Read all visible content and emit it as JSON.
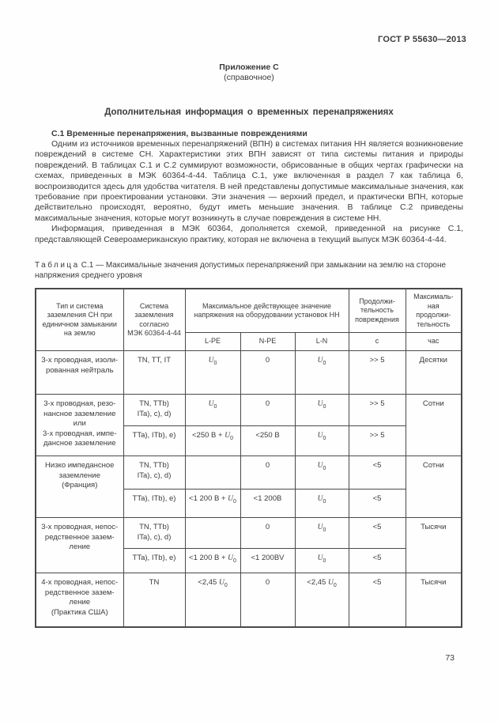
{
  "page": {
    "doc_code": "ГОСТ Р 55630—2013",
    "appendix_title": "Приложение С",
    "appendix_subtitle": "(справочное)",
    "main_title": "Дополнительная информация о временных перенапряжениях",
    "page_number": "73"
  },
  "section": {
    "heading": "С.1 Временные перенапряжения, вызванные повреждениями",
    "paragraph1": "Одним из источников временных перенапряжений (ВПН) в системах питания НН является возникновение повреждений в системе СН. Характеристики этих ВПН зависят от типа системы питания и природы повреждений. В таблицах С.1 и С.2 суммируют возможности, обрисованные в общих чертах графически на схемах, приведенных в МЭК 60364-4-44. Таблица С.1, уже включенная в раздел 7 как таблица 6, воспроизводится здесь для удобства читателя. В ней представлены допустимые максимальные значения, как требование при проектировании установки. Эти значения — верхний предел, и практически ВПН, которые действительно происходят, вероятно, будут иметь меньшие значения. В таблице С.2 приведены максимальные значения, которые могут возникнуть в случае повреждения в системе  НН.",
    "paragraph2": "Информация, приведенная в МЭК 60364, дополняется схемой, приведенной на рисунке С.1, представляющей Североамериканскую практику, которая не включена в текущий выпуск МЭК 60364-4-44."
  },
  "table": {
    "caption_word": "Таблица",
    "caption_number": "С.1",
    "caption_text": "— Максимальные значения допустимых перенапряжений при замыкании на землю на стороне напряжения среднего уровня",
    "headers": {
      "col_type": "Тип и система\nзаземления СН при\nединичном замыкании\nна землю",
      "col_system": "Система\nзаземления\nсогласно\nМЭК 60364-4-44",
      "col_voltage_group": "Максимальное действующее значение\nнапряжения на оборудовании установок НН",
      "col_duration": "Продолжи-\nтельность\nповреждения",
      "col_max_duration": "Максималь-\nная\nпродолжи-\nтельность",
      "sub_lpe": "L-PE",
      "sub_npe": "N-PE",
      "sub_ln": "L-N",
      "sub_s": "с",
      "sub_hour": "час"
    },
    "rows": {
      "r1": {
        "type": "3-х проводная, изоли-\nрованная нейтраль",
        "system": "TN, TT, IT",
        "lpe_html": "<i>U</i><sub>0</sub>",
        "npe": "0",
        "ln_html": "<i>U</i><sub>0</sub>",
        "dur": ">> 5",
        "max": "Десятки"
      },
      "r2": {
        "type": "3-х проводная, резо-\nнансное заземление\nили\n3-х проводная, импе-\nдансное заземление",
        "max": "Сотни",
        "a": {
          "system": "TN, TTb)\nITa), c), d)",
          "lpe_html": "<i>U</i><sub>0</sub>",
          "npe": "0",
          "ln_html": "<i>U</i><sub>0</sub>",
          "dur": ">> 5"
        },
        "b": {
          "system": "TTa), ITb), e)",
          "lpe_html": "&lt;250 В + <i>U</i><sub>0</sub>",
          "npe": "<250 В",
          "ln_html": "<i>U</i><sub>0</sub>",
          "dur": ">> 5"
        }
      },
      "r3": {
        "type": "Низко импедансное\nзаземление\n(Франция)",
        "max": "Сотни",
        "a": {
          "system": "TN, TTb)\nITa), c), d)",
          "lpe_html": "",
          "npe": "0",
          "ln_html": "<i>U</i><sub>0</sub>",
          "dur": "<5"
        },
        "b": {
          "system": "TTa), ITb), e)",
          "lpe_html": "&lt;1 200 В + <i>U</i><sub>0</sub>",
          "npe": "<1 200В",
          "ln_html": "<i>U</i><sub>0</sub>",
          "dur": "<5"
        }
      },
      "r4": {
        "type": "3-х проводная, непос-\nредственное зазем-\nление",
        "max": "Тысячи",
        "a": {
          "system": "TN, TTb)\nITa), c), d)",
          "lpe_html": "",
          "npe": "0",
          "ln_html": "<i>U</i><sub>0</sub>",
          "dur": "<5"
        },
        "b": {
          "system": "TTa), ITb), e)",
          "lpe_html": "&lt;1 200 В + <i>U</i><sub>0</sub>",
          "npe": "<1 200ВV",
          "ln_html": "<i>U</i><sub>0</sub>",
          "dur": "<5"
        }
      },
      "r5": {
        "type": "4-х проводная, непос-\nредственное зазем-\nление\n(Практика США)",
        "system": "TN",
        "lpe_html": "&lt;2,45 <i>U</i><sub>0</sub>",
        "npe": "0",
        "ln_html": "&lt;2,45 <i>U</i><sub>0</sub>",
        "dur": "<5",
        "max": "Тысячи"
      }
    }
  }
}
